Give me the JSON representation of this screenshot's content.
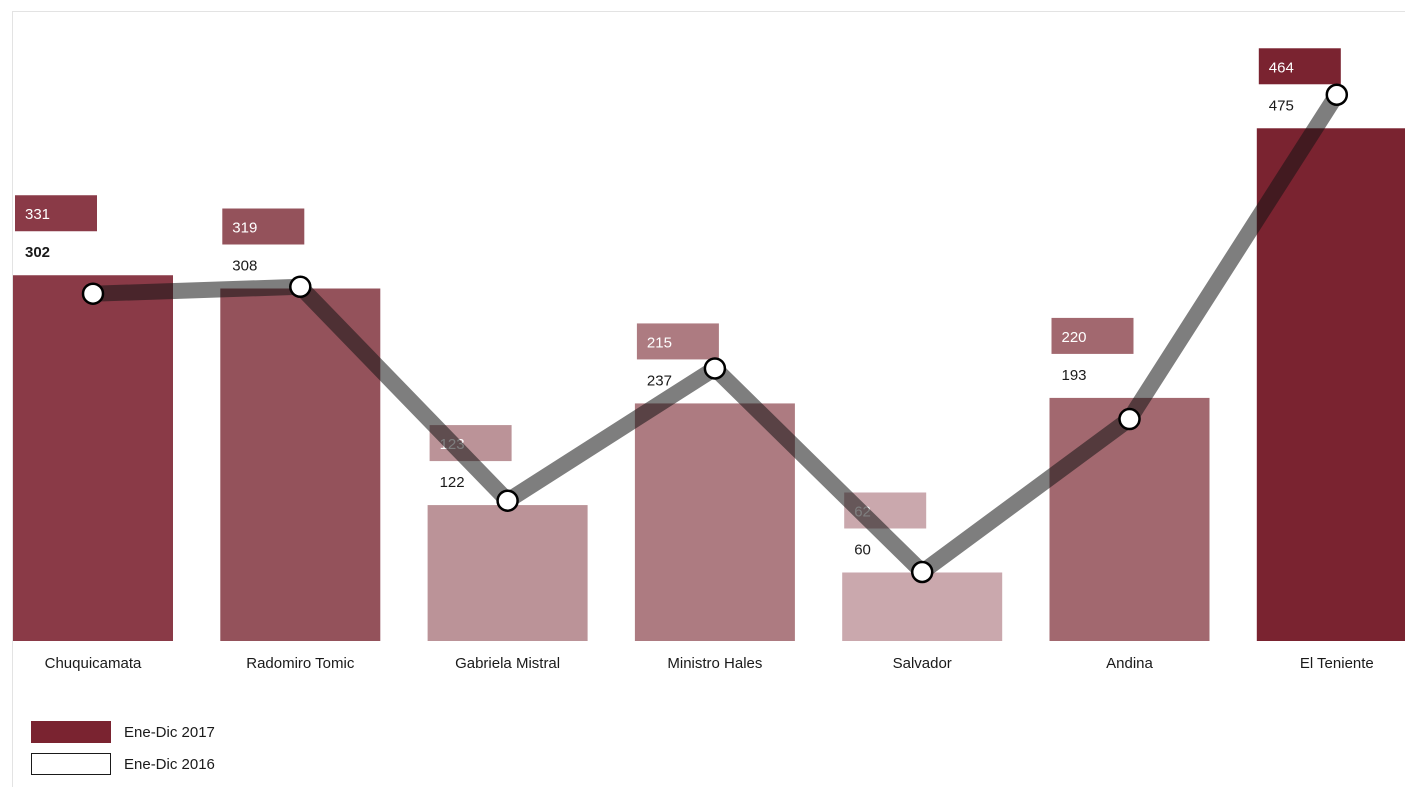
{
  "chart_data": {
    "type": "bar",
    "categories": [
      "Chuquicamata",
      "Radomiro Tomic",
      "Gabriela Mistral",
      "Ministro Hales",
      "Salvador",
      "Andina",
      "El Teniente"
    ],
    "series": [
      {
        "name": "Ene-Dic 2017",
        "values": [
          331,
          319,
          123,
          215,
          62,
          220,
          464
        ],
        "color": "#7a2330"
      },
      {
        "name": "Ene-Dic 2016",
        "values": [
          302,
          308,
          122,
          237,
          60,
          193,
          475
        ],
        "color": "#1a1a1a",
        "style": "line-with-markers"
      }
    ],
    "bar_fill_colors": [
      "#8a3a47",
      "#94525b",
      "#bb9398",
      "#ad7b81",
      "#caa8ad",
      "#a2686f",
      "#7a2330"
    ],
    "title": "",
    "xlabel": "",
    "ylabel": "",
    "legend_position": "bottom-left",
    "grid": false
  },
  "legend": {
    "items": [
      {
        "label": "Ene-Dic 2017",
        "style": "filled"
      },
      {
        "label": "Ene-Dic 2016",
        "style": "outline"
      }
    ]
  }
}
